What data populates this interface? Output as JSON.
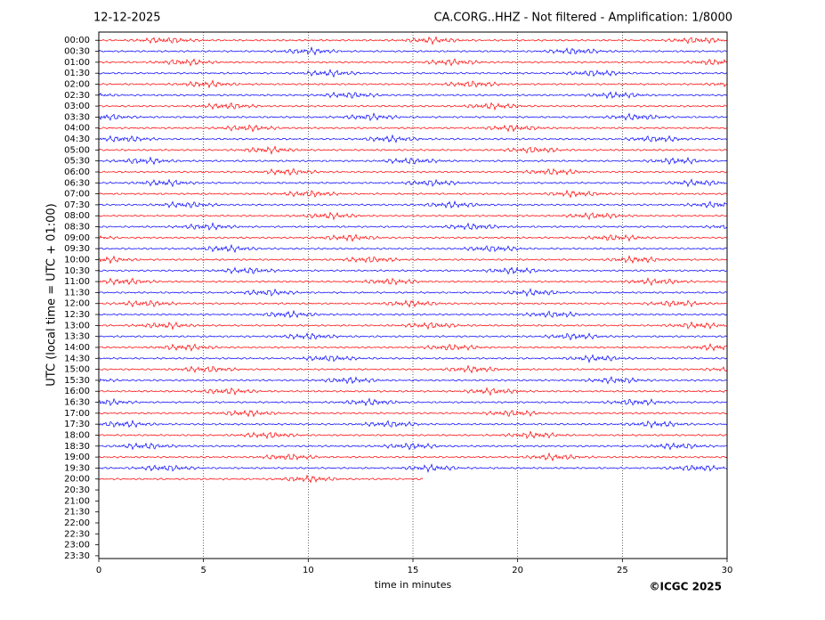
{
  "chart_data": {
    "type": "helicorder",
    "title_left": "12-12-2025",
    "title": "CA.CORG..HHZ - Not filtered - Amplification: 1/8000",
    "ylabel": "UTC (local time = UTC + 01:00)",
    "xlabel": "time in minutes",
    "credit": "©ICGC 2025",
    "categories": [
      "00:00",
      "00:30",
      "01:00",
      "01:30",
      "02:00",
      "02:30",
      "03:00",
      "03:30",
      "04:00",
      "04:30",
      "05:00",
      "05:30",
      "06:00",
      "06:30",
      "07:00",
      "07:30",
      "08:00",
      "08:30",
      "09:00",
      "09:30",
      "10:00",
      "10:30",
      "11:00",
      "11:30",
      "12:00",
      "12:30",
      "13:00",
      "13:30",
      "14:00",
      "14:30",
      "15:00",
      "15:30",
      "16:00",
      "16:30",
      "17:00",
      "17:30",
      "18:00",
      "18:30",
      "19:00",
      "19:30",
      "20:00",
      "20:30",
      "21:00",
      "21:30",
      "22:00",
      "22:30",
      "23:00",
      "23:30"
    ],
    "values": [
      30,
      30,
      30,
      30,
      30,
      30,
      30,
      30,
      30,
      30,
      30,
      30,
      30,
      30,
      30,
      30,
      30,
      30,
      30,
      30,
      30,
      30,
      30,
      30,
      30,
      30,
      30,
      30,
      30,
      30,
      30,
      30,
      30,
      30,
      30,
      30,
      30,
      30,
      30,
      30,
      15.5,
      null,
      null,
      null,
      null,
      null,
      null,
      null
    ],
    "colors": [
      "#ff0000",
      "#0000ff"
    ],
    "xlim": [
      0,
      30
    ],
    "xticks": [
      0,
      5,
      10,
      15,
      20,
      25,
      30
    ],
    "grid": true
  }
}
